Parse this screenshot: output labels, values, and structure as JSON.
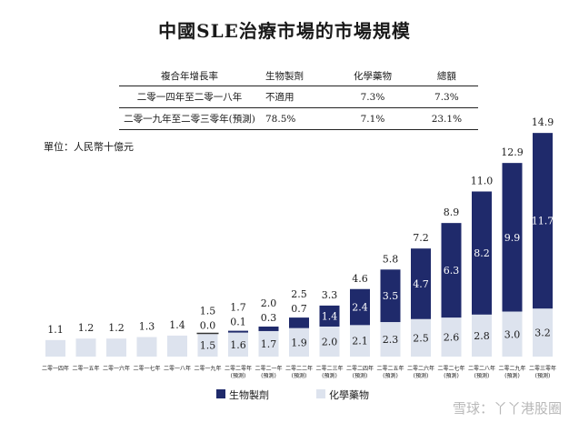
{
  "title": "中國SLE治療市場的市場規模",
  "cagr_table": {
    "headers": [
      "複合年增長率",
      "生物製劑",
      "化學藥物",
      "總額"
    ],
    "rows": [
      [
        "二零一四年至二零一八年",
        "不適用",
        "7.3%",
        "7.3%"
      ],
      [
        "二零一九年至二零三零年(預測)",
        "78.5%",
        "7.1%",
        "23.1%"
      ]
    ]
  },
  "unit_label": "單位：人民幣十億元",
  "watermark": "雪球：丫丫港股圈",
  "colors": {
    "biologics": "#1f2a6b",
    "chemical": "#dde3ee"
  },
  "chart_data": {
    "type": "bar",
    "stacked": true,
    "categories": [
      "二零一四年",
      "二零一五年",
      "二零一六年",
      "二零一七年",
      "二零一八年",
      "二零一九年",
      "二零二零年(預測)",
      "二零二一年(預測)",
      "二零二二年(預測)",
      "二零二三年(預測)",
      "二零二四年(預測)",
      "二零二五年(預測)",
      "二零二六年(預測)",
      "二零二七年(預測)",
      "二零二八年(預測)",
      "二零二九年(預測)",
      "二零三零年(預測)"
    ],
    "series": [
      {
        "name": "化學藥物",
        "values": [
          1.1,
          1.2,
          1.2,
          1.3,
          1.4,
          1.5,
          1.6,
          1.7,
          1.9,
          2.0,
          2.1,
          2.3,
          2.5,
          2.6,
          2.8,
          3.0,
          3.2
        ]
      },
      {
        "name": "生物製劑",
        "values": [
          null,
          null,
          null,
          null,
          null,
          0.0,
          0.1,
          0.3,
          0.7,
          1.4,
          2.4,
          3.5,
          4.7,
          6.3,
          8.2,
          9.9,
          11.7
        ]
      }
    ],
    "totals": [
      1.1,
      1.2,
      1.2,
      1.3,
      1.4,
      1.5,
      1.7,
      2.0,
      2.5,
      3.3,
      4.6,
      5.8,
      7.2,
      8.9,
      11.0,
      12.9,
      14.9
    ],
    "legend": [
      "生物製劑",
      "化學藥物"
    ],
    "legend_position": "bottom",
    "ylim": [
      0,
      15
    ],
    "grid": false
  }
}
